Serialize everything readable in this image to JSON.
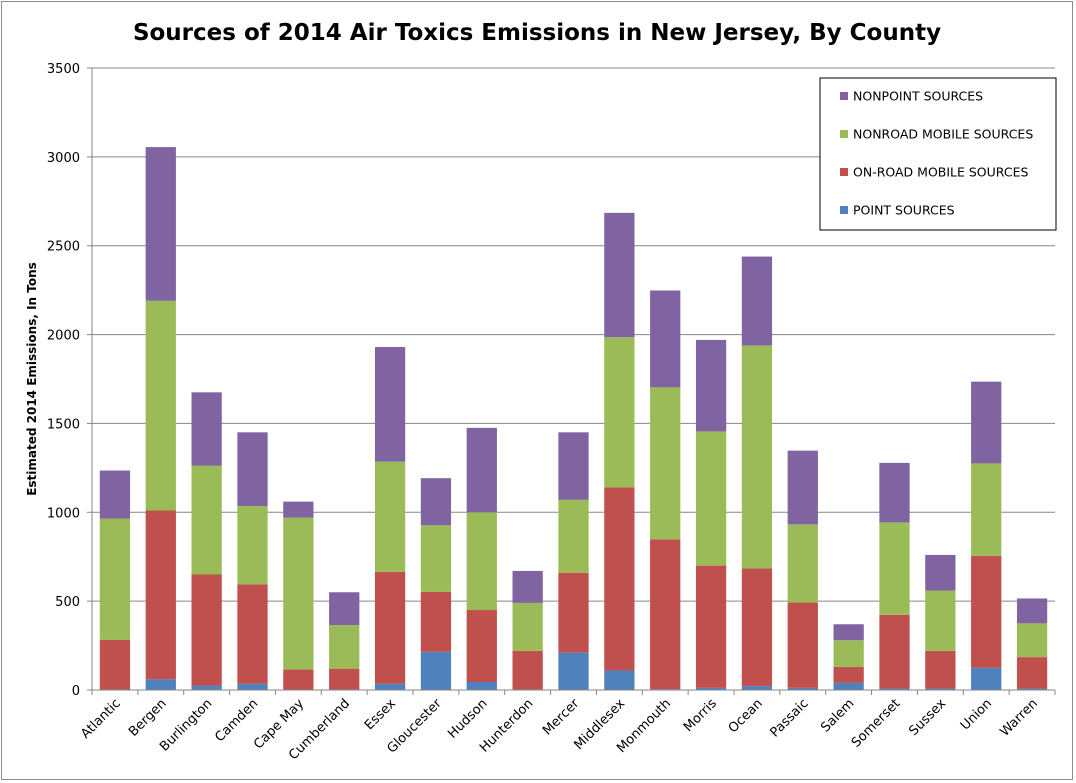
{
  "chart_data": {
    "type": "bar",
    "stacked": true,
    "title": "Sources of 2014 Air Toxics Emissions in New Jersey, By County",
    "xlabel": "",
    "ylabel": "Estimated 2014 Emissions, In Tons",
    "ylim": [
      0,
      3500
    ],
    "yticks": [
      0,
      500,
      1000,
      1500,
      2000,
      2500,
      3000,
      3500
    ],
    "grid": true,
    "legend_position": "top-right",
    "categories": [
      "Atlantic",
      "Bergen",
      "Burlington",
      "Camden",
      "Cape May",
      "Cumberland",
      "Essex",
      "Gloucester",
      "Hudson",
      "Hunterdon",
      "Mercer",
      "Middlesex",
      "Monmouth",
      "Morris",
      "Ocean",
      "Passaic",
      "Salem",
      "Somerset",
      "Sussex",
      "Union",
      "Warren"
    ],
    "series": [
      {
        "name": "POINT SOURCES",
        "color": "#4f81bd",
        "values": [
          3,
          60,
          25,
          35,
          2,
          3,
          35,
          215,
          45,
          3,
          210,
          110,
          5,
          12,
          22,
          12,
          40,
          8,
          8,
          125,
          8
        ]
      },
      {
        "name": "ON-ROAD MOBILE SOURCES",
        "color": "#c0504d",
        "values": [
          280,
          950,
          625,
          560,
          113,
          117,
          630,
          337,
          405,
          217,
          450,
          1030,
          843,
          688,
          662,
          480,
          90,
          415,
          212,
          630,
          177
        ]
      },
      {
        "name": "NONROAD MOBILE SOURCES",
        "color": "#9bbb59",
        "values": [
          682,
          1180,
          613,
          440,
          855,
          245,
          620,
          375,
          550,
          270,
          410,
          845,
          855,
          755,
          1255,
          440,
          150,
          520,
          340,
          520,
          190
        ]
      },
      {
        "name": "NONPOINT SOURCES",
        "color": "#8064a2",
        "values": [
          270,
          865,
          412,
          415,
          90,
          185,
          645,
          265,
          475,
          180,
          380,
          700,
          545,
          515,
          500,
          415,
          90,
          335,
          200,
          460,
          140
        ]
      }
    ]
  }
}
